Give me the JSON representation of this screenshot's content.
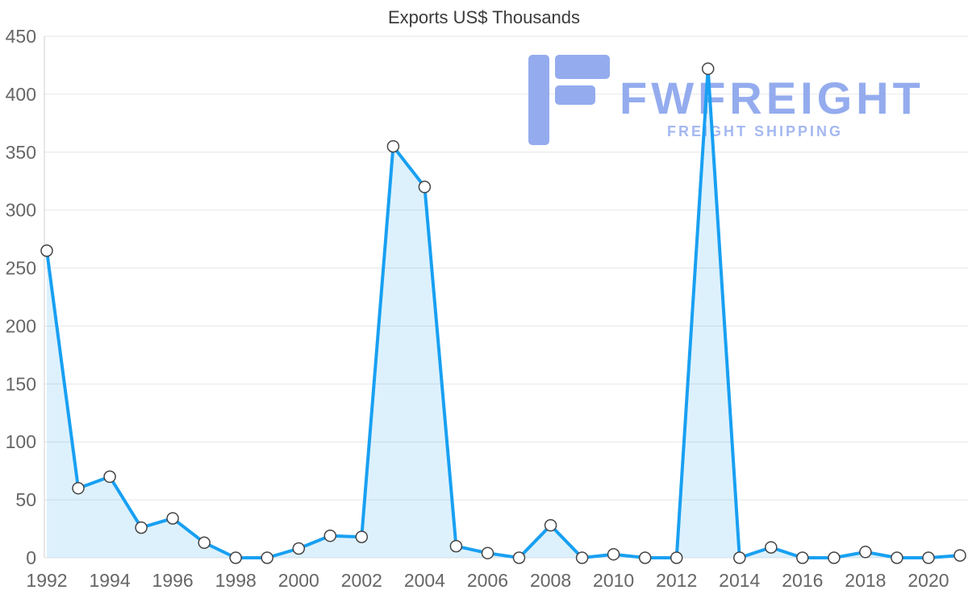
{
  "title": "Exports US$ Thousands",
  "watermark": {
    "brand": "FWFREIGHT",
    "tagline": "FREIGHT SHIPPING",
    "brand_color": "#8ca5ed",
    "tagline_color": "#9db3f0",
    "logo_color": "#8ca5ed"
  },
  "chart_data": {
    "type": "area",
    "title": "Exports US$ Thousands",
    "xlabel": "",
    "ylabel": "",
    "x": [
      1992,
      1993,
      1994,
      1995,
      1996,
      1997,
      1998,
      1999,
      2000,
      2001,
      2002,
      2003,
      2004,
      2005,
      2006,
      2007,
      2008,
      2009,
      2010,
      2011,
      2012,
      2013,
      2014,
      2015,
      2016,
      2017,
      2018,
      2019,
      2020,
      2021
    ],
    "values": [
      265,
      60,
      70,
      26,
      34,
      13,
      0,
      0,
      8,
      19,
      18,
      355,
      320,
      10,
      4,
      0,
      28,
      0,
      3,
      0,
      0,
      422,
      0,
      9,
      0,
      0,
      5,
      0,
      0,
      2
    ],
    "ylim": [
      0,
      450
    ],
    "ytick_interval": 50,
    "xtick_interval": 2,
    "grid": true,
    "legend": "none",
    "line_color": "#18a0f2",
    "line_width": 4,
    "fill_color": "#18a0f2",
    "fill_opacity": 0.15,
    "marker_fill": "#ffffff",
    "marker_stroke": "#444444",
    "marker_radius": 7,
    "grid_color": "#e6e6e6",
    "axis_line_color": "#cfcfcf",
    "tick_label_color": "#666666",
    "title_color": "#3b3b3b"
  }
}
